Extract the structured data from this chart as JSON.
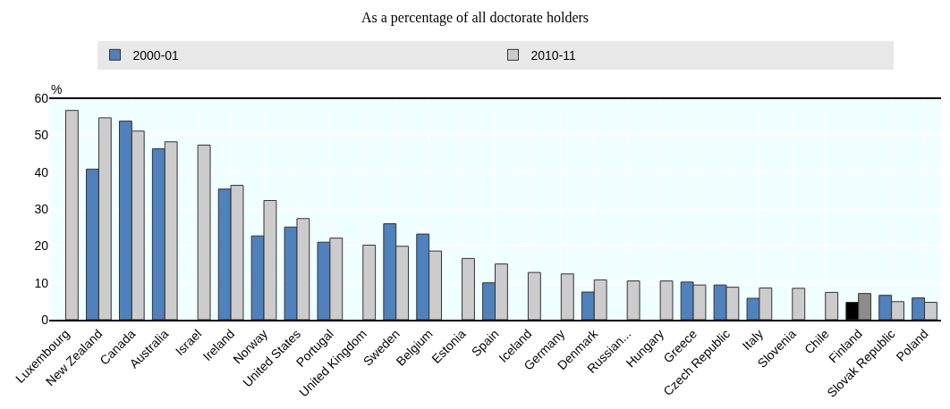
{
  "chart_data": {
    "type": "bar",
    "title": "As a percentage of all doctorate holders",
    "ylabel": "%",
    "categories": [
      "Luxembourg",
      "New Zealand",
      "Canada",
      "Australia",
      "Israel",
      "Ireland",
      "Norway",
      "United States",
      "Portugal",
      "United Kingdom",
      "Sweden",
      "Belgium",
      "Estonia",
      "Spain",
      "Iceland",
      "Germany",
      "Denmark",
      "Russian...",
      "Hungary",
      "Greece",
      "Czech Republic",
      "Italy",
      "Slovenia",
      "Chile",
      "Finland",
      "Slovak Republic",
      "Poland"
    ],
    "series": [
      {
        "name": "2000-01",
        "colors": [
          "#4f81bd",
          "#4f81bd",
          "#4f81bd",
          "#4f81bd",
          "#4f81bd",
          "#4f81bd",
          "#4f81bd",
          "#4f81bd",
          "#4f81bd",
          "#4f81bd",
          "#4f81bd",
          "#4f81bd",
          "#4f81bd",
          "#4f81bd",
          "#4f81bd",
          "#4f81bd",
          "#4f81bd",
          "#4f81bd",
          "#4f81bd",
          "#4f81bd",
          "#4f81bd",
          "#4f81bd",
          "#4f81bd",
          "#4f81bd",
          "#000000",
          "#4f81bd",
          "#4f81bd"
        ],
        "values": [
          null,
          40.8,
          53.8,
          46.3,
          null,
          35.4,
          22.7,
          25.1,
          21,
          null,
          26,
          23.2,
          null,
          10,
          null,
          null,
          7.5,
          null,
          null,
          10.2,
          9.4,
          5.8,
          null,
          null,
          4.7,
          6.6,
          5.9
        ]
      },
      {
        "name": "2010-11",
        "colors": [
          "#cccccc",
          "#cccccc",
          "#cccccc",
          "#cccccc",
          "#cccccc",
          "#cccccc",
          "#cccccc",
          "#cccccc",
          "#cccccc",
          "#cccccc",
          "#cccccc",
          "#cccccc",
          "#cccccc",
          "#cccccc",
          "#cccccc",
          "#cccccc",
          "#cccccc",
          "#cccccc",
          "#cccccc",
          "#cccccc",
          "#cccccc",
          "#cccccc",
          "#cccccc",
          "#cccccc",
          "#8c8c8c",
          "#cccccc",
          "#cccccc"
        ],
        "values": [
          56.7,
          54.7,
          51.1,
          48.2,
          47.3,
          36.4,
          32.3,
          27.4,
          22.1,
          20.2,
          19.9,
          18.6,
          16.6,
          15.1,
          12.8,
          12.4,
          10.8,
          10.5,
          10.5,
          9.4,
          8.8,
          8.6,
          8.5,
          7.4,
          7.1,
          4.9,
          4.7
        ]
      }
    ],
    "ylim": [
      0,
      60
    ],
    "yticks": [
      0,
      10,
      20,
      30,
      40,
      50,
      60
    ],
    "grid": true,
    "legend": "top"
  }
}
